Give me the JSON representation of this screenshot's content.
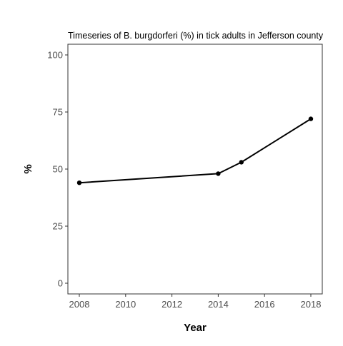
{
  "chart_data": {
    "type": "line",
    "title": "Timeseries of B. burgdorferi (%) in tick adults in Jefferson county",
    "xlabel": "Year",
    "ylabel": "%",
    "x": [
      2008,
      2014,
      2015,
      2018
    ],
    "series": [
      {
        "values": [
          44,
          48,
          53,
          72
        ]
      }
    ],
    "xlim": [
      2008,
      2018
    ],
    "ylim": [
      0,
      100
    ],
    "x_ticks": [
      2008,
      2010,
      2012,
      2014,
      2016,
      2018
    ],
    "y_ticks": [
      0,
      25,
      50,
      75,
      100
    ],
    "x_tick_labels": [
      "2008",
      "2010",
      "2012",
      "2014",
      "2016",
      "2018"
    ],
    "y_tick_labels": [
      "0",
      "25",
      "50",
      "75",
      "100"
    ],
    "grid": false,
    "legend": "none",
    "colors": {
      "line": "#000000",
      "points": "#000000",
      "panel_border": "#333333",
      "tick_text": "#4d4d4d",
      "background": "#ffffff"
    }
  }
}
